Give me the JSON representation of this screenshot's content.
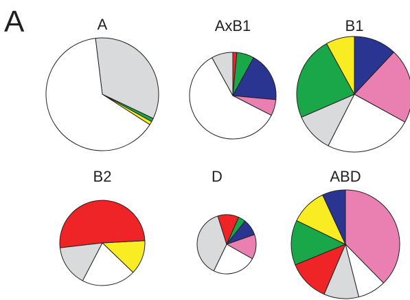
{
  "panel_label": "A",
  "colors": {
    "red": "#ee2427",
    "green": "#1aa74a",
    "blue": "#2a3591",
    "pink": "#ea80b1",
    "gray": "#d8dadb",
    "white": "#ffffff",
    "yellow": "#f9ec23",
    "outline": "#231f20"
  },
  "chart_data": [
    {
      "type": "pie",
      "title": "A",
      "slices": [
        {
          "color": "gray",
          "value": 34.0
        },
        {
          "color": "green",
          "value": 1.0
        },
        {
          "color": "yellow",
          "value": 1.0
        },
        {
          "color": "white",
          "value": 64.0
        }
      ]
    },
    {
      "type": "pie",
      "title": "AxB1",
      "slices": [
        {
          "color": "red",
          "value": 1.5
        },
        {
          "color": "green",
          "value": 6.5
        },
        {
          "color": "blue",
          "value": 18.5
        },
        {
          "color": "pink",
          "value": 6.0
        },
        {
          "color": "white",
          "value": 59.5
        },
        {
          "color": "gray",
          "value": 8.0
        }
      ]
    },
    {
      "type": "pie",
      "title": "B1",
      "slices": [
        {
          "color": "blue",
          "value": 12.0
        },
        {
          "color": "pink",
          "value": 21.0
        },
        {
          "color": "white",
          "value": 24.5
        },
        {
          "color": "gray",
          "value": 11.0
        },
        {
          "color": "green",
          "value": 23.5
        },
        {
          "color": "yellow",
          "value": 8.0
        }
      ]
    },
    {
      "type": "pie",
      "title": "B2",
      "slices": [
        {
          "color": "yellow",
          "value": 13.0
        },
        {
          "color": "white",
          "value": 20.5
        },
        {
          "color": "gray",
          "value": 15.5
        },
        {
          "color": "red",
          "value": 51.0
        }
      ]
    },
    {
      "type": "pie",
      "title": "D",
      "slices": [
        {
          "color": "green",
          "value": 4.0
        },
        {
          "color": "blue",
          "value": 9.0
        },
        {
          "color": "pink",
          "value": 13.5
        },
        {
          "color": "white",
          "value": 24.0
        },
        {
          "color": "gray",
          "value": 38.0
        },
        {
          "color": "red",
          "value": 11.5
        }
      ]
    },
    {
      "type": "pie",
      "title": "ABD",
      "slices": [
        {
          "color": "pink",
          "value": 38.0
        },
        {
          "color": "white",
          "value": 8.5
        },
        {
          "color": "gray",
          "value": 10.5
        },
        {
          "color": "red",
          "value": 12.5
        },
        {
          "color": "green",
          "value": 13.5
        },
        {
          "color": "yellow",
          "value": 11.0
        },
        {
          "color": "blue",
          "value": 7.0
        }
      ]
    }
  ]
}
